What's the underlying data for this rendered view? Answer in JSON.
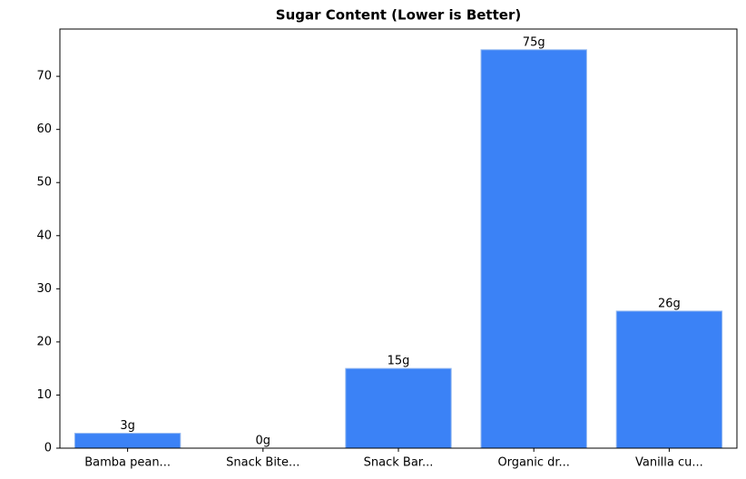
{
  "chart_data": {
    "type": "bar",
    "title": "Sugar Content (Lower is Better)",
    "categories": [
      "Bamba pean...",
      "Snack Bite...",
      "Snack Bar...",
      "Organic dr...",
      "Vanilla cu..."
    ],
    "values": [
      2.8,
      0,
      15,
      75,
      25.8
    ],
    "value_labels": [
      "3g",
      "0g",
      "15g",
      "75g",
      "26g"
    ],
    "color": "#3b82f6",
    "ylim": [
      0,
      78.9
    ],
    "yticks": [
      0,
      10,
      20,
      30,
      40,
      50,
      60,
      70
    ],
    "grid": false
  }
}
